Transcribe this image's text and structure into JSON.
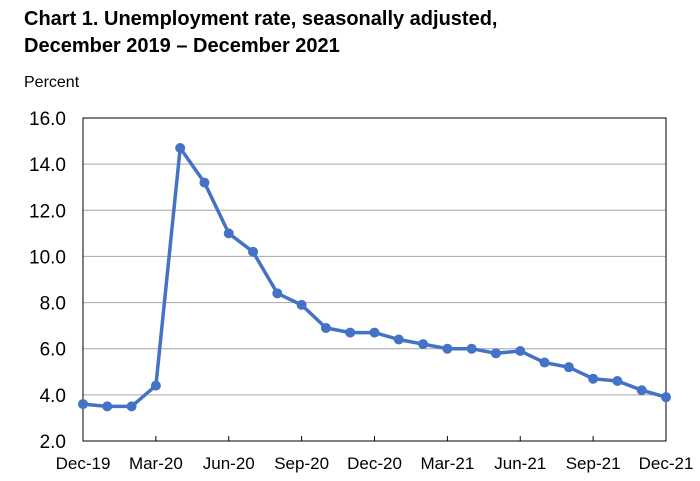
{
  "chart_data": {
    "type": "line",
    "title_line1": "Chart 1. Unemployment rate, seasonally adjusted,",
    "title_line2": "December 2019 – December 2021",
    "ylabel": "Percent",
    "xlabel": "",
    "ylim": [
      2.0,
      16.0
    ],
    "yticks": [
      "2.0",
      "4.0",
      "6.0",
      "8.0",
      "10.0",
      "12.0",
      "14.0",
      "16.0"
    ],
    "xtick_labels": [
      "Dec-19",
      "Mar-20",
      "Jun-20",
      "Sep-20",
      "Dec-20",
      "Mar-21",
      "Jun-21",
      "Sep-21",
      "Dec-21"
    ],
    "x": [
      "Dec-19",
      "Jan-20",
      "Feb-20",
      "Mar-20",
      "Apr-20",
      "May-20",
      "Jun-20",
      "Jul-20",
      "Aug-20",
      "Sep-20",
      "Oct-20",
      "Nov-20",
      "Dec-20",
      "Jan-21",
      "Feb-21",
      "Mar-21",
      "Apr-21",
      "May-21",
      "Jun-21",
      "Jul-21",
      "Aug-21",
      "Sep-21",
      "Oct-21",
      "Nov-21",
      "Dec-21"
    ],
    "series": [
      {
        "values": [
          3.6,
          3.5,
          3.5,
          4.4,
          14.7,
          13.2,
          11.0,
          10.2,
          8.4,
          7.9,
          6.9,
          6.7,
          6.7,
          6.4,
          6.2,
          6.0,
          6.0,
          5.8,
          5.9,
          5.4,
          5.2,
          4.7,
          4.6,
          4.2,
          3.9
        ],
        "color": "#4472c4"
      }
    ],
    "grid": true,
    "legend": "none"
  }
}
